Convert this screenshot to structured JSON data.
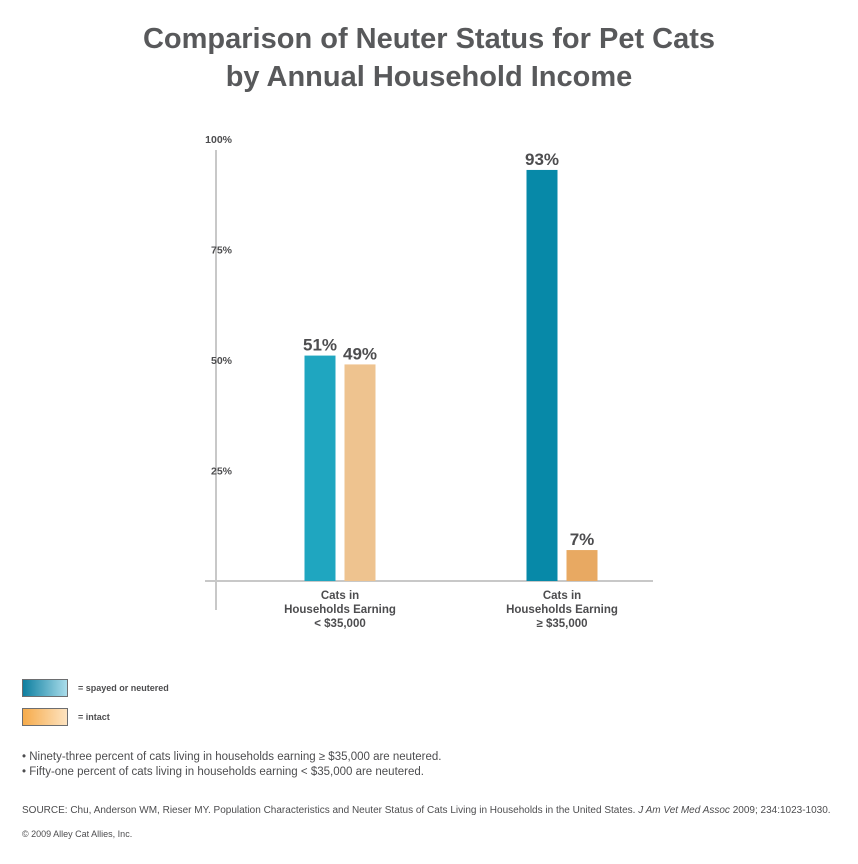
{
  "title_lines": [
    "Comparison of Neuter Status for Pet Cats",
    "by Annual Household Income"
  ],
  "chart_data": {
    "type": "bar",
    "categories": [
      [
        "Cats in",
        "Households Earning",
        "< $35,000"
      ],
      [
        "Cats in",
        "Households Earning",
        "≥ $35,000"
      ]
    ],
    "series": [
      {
        "name": "= spayed or neutered",
        "values": [
          51,
          93
        ],
        "labels": [
          "51%",
          "93%"
        ],
        "colors": [
          "#1fa6c0",
          "#0789a8"
        ]
      },
      {
        "name": "= intact",
        "values": [
          49,
          7
        ],
        "labels": [
          "49%",
          "7%"
        ],
        "colors": [
          "#eec38f",
          "#e8a962"
        ]
      }
    ],
    "yticks": [
      {
        "value": 25,
        "label": "25%"
      },
      {
        "value": 50,
        "label": "50%"
      },
      {
        "value": 75,
        "label": "75%"
      },
      {
        "value": 100,
        "label": "100%"
      }
    ],
    "ylim": [
      0,
      100
    ],
    "grid": false,
    "legend_position": "bottom-left"
  },
  "legend": {
    "spayed_label": "= spayed or neutered",
    "intact_label": "= intact"
  },
  "notes": [
    "• Ninety-three percent of cats living in households earning ≥ $35,000 are neutered.",
    "• Fifty-one percent of cats living in households earning < $35,000 are neutered."
  ],
  "source": {
    "prefix": "SOURCE: Chu, Anderson WM, Rieser MY. Population Characteristics and Neuter Status of Cats Living in Households in the United States. ",
    "journal": "J Am Vet Med Assoc",
    "suffix": " 2009; 234:1023-1030."
  },
  "copyright": "© 2009 Alley Cat Allies, Inc.",
  "colors": {
    "teal": "#0789a8",
    "light_teal": "#1fa6c0",
    "peach": "#eec38f",
    "orange": "#e8a962",
    "text": "#4d4d4f"
  }
}
